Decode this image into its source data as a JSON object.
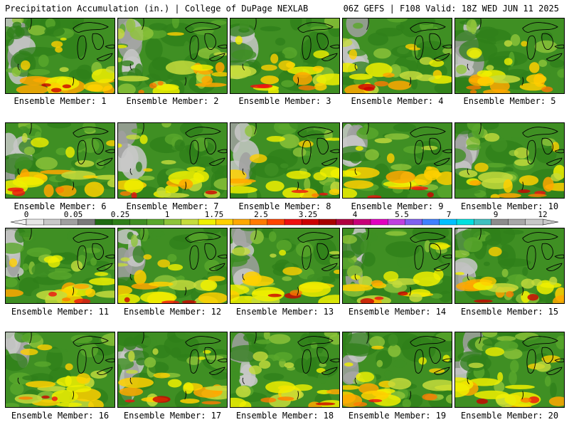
{
  "header": {
    "left": "Precipitation Accumulation (in.) | College of DuPage NEXLAB",
    "right": "06Z GEFS | F108 Valid: 18Z WED JUN 11 2025"
  },
  "panels": [
    {
      "label": "Ensemble Member: 1"
    },
    {
      "label": "Ensemble Member: 2"
    },
    {
      "label": "Ensemble Member: 3"
    },
    {
      "label": "Ensemble Member: 4"
    },
    {
      "label": "Ensemble Member: 5"
    },
    {
      "label": "Ensemble Member: 6"
    },
    {
      "label": "Ensemble Member: 7"
    },
    {
      "label": "Ensemble Member: 8"
    },
    {
      "label": "Ensemble Member: 9"
    },
    {
      "label": "Ensemble Member: 10"
    },
    {
      "label": "Ensemble Member: 11"
    },
    {
      "label": "Ensemble Member: 12"
    },
    {
      "label": "Ensemble Member: 13"
    },
    {
      "label": "Ensemble Member: 14"
    },
    {
      "label": "Ensemble Member: 15"
    },
    {
      "label": "Ensemble Member: 16"
    },
    {
      "label": "Ensemble Member: 17"
    },
    {
      "label": "Ensemble Member: 18"
    },
    {
      "label": "Ensemble Member: 19"
    },
    {
      "label": "Ensemble Member: 20"
    }
  ],
  "colorbar": {
    "tick_labels": [
      "0",
      "0.05",
      "0.25",
      "1",
      "1.75",
      "2.5",
      "3.25",
      "4",
      "5.5",
      "7",
      "9",
      "12"
    ],
    "colors": [
      "#e6e6e6",
      "#c8c8c8",
      "#a0a0a0",
      "#7a7a7a",
      "#1f6b12",
      "#2f7f1a",
      "#3f8f23",
      "#5aa82c",
      "#8ec43a",
      "#c6dc3c",
      "#f0f000",
      "#ffd000",
      "#ffa800",
      "#ff7a00",
      "#ff4400",
      "#ee1010",
      "#cc0000",
      "#a80000",
      "#b00040",
      "#c80078",
      "#e000c0",
      "#c040e0",
      "#8060f0",
      "#4080ff",
      "#00c0ff",
      "#00e0e0",
      "#40c0c0",
      "#8c8c8c",
      "#a8a8a8",
      "#c8c8c8"
    ]
  }
}
